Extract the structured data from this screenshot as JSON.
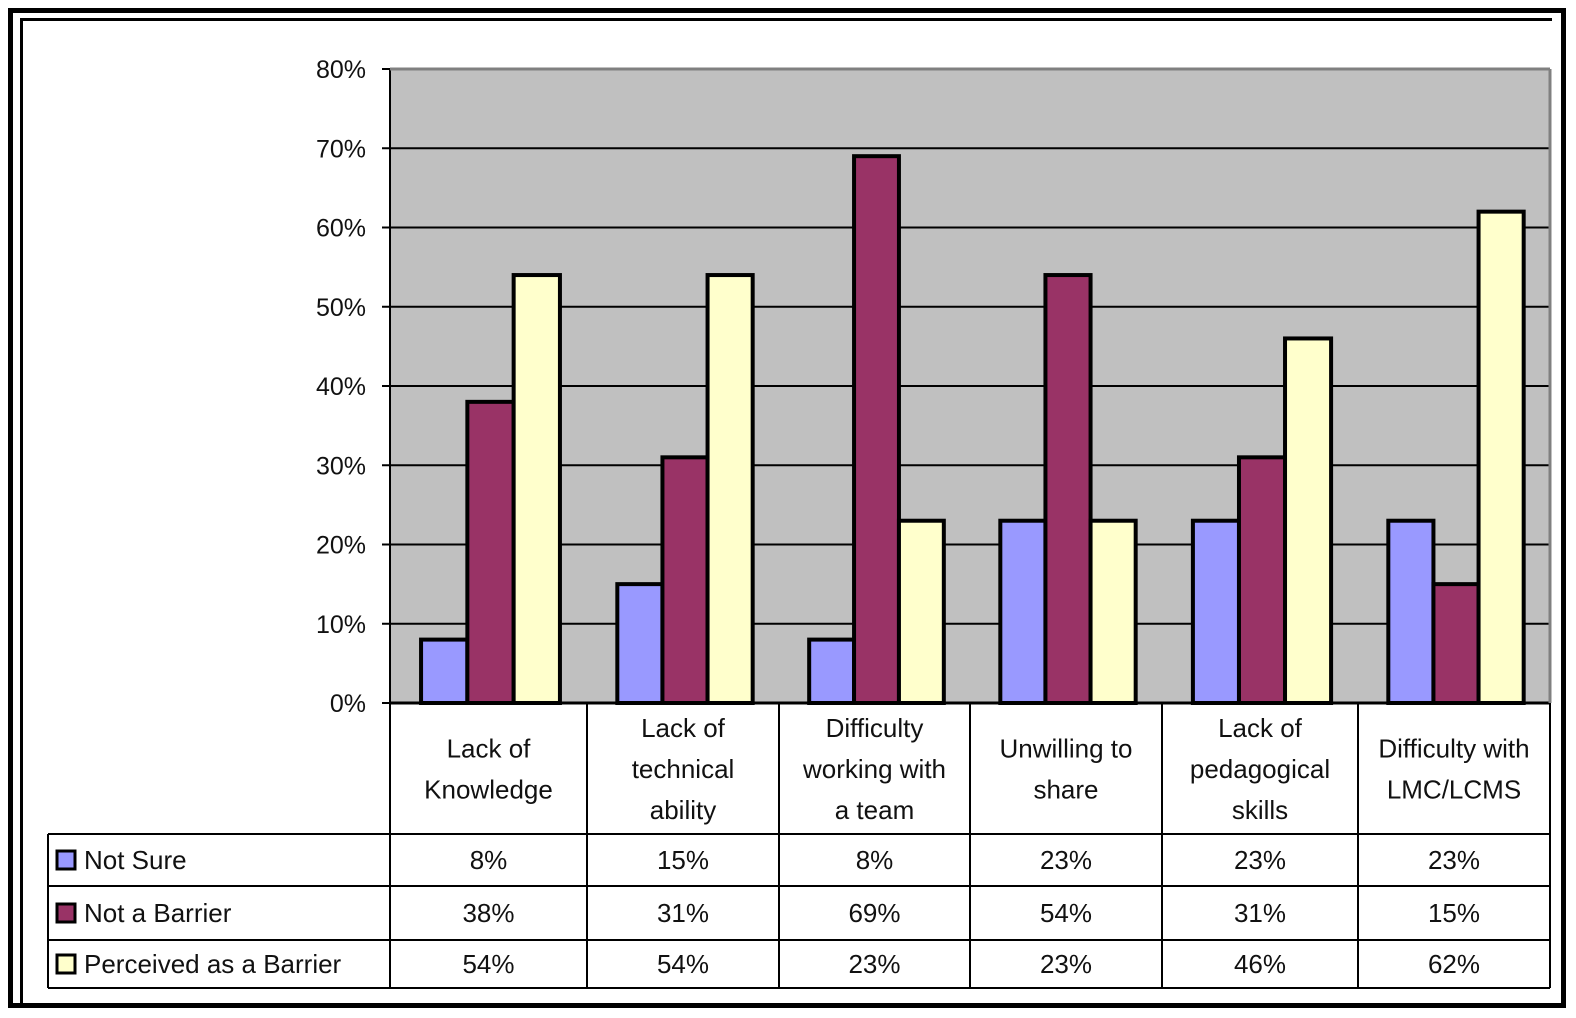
{
  "chart_data": {
    "type": "bar",
    "categories": [
      [
        "Lack of",
        "Knowledge"
      ],
      [
        "Lack of",
        "technical",
        "ability"
      ],
      [
        "Difficulty",
        "working with",
        "a team"
      ],
      [
        "Unwilling to",
        "share"
      ],
      [
        "Lack of",
        "pedagogical",
        "skills"
      ],
      [
        "Difficulty with",
        "LMC/LCMS"
      ]
    ],
    "series": [
      {
        "name": "Not Sure",
        "color": "#9999ff",
        "values": [
          8,
          15,
          8,
          23,
          23,
          23
        ],
        "labels": [
          "8%",
          "15%",
          "8%",
          "23%",
          "23%",
          "23%"
        ]
      },
      {
        "name": "Not a Barrier",
        "color": "#993366",
        "values": [
          38,
          31,
          69,
          54,
          31,
          15
        ],
        "labels": [
          "38%",
          "31%",
          "69%",
          "54%",
          "31%",
          "15%"
        ]
      },
      {
        "name": "Perceived as a Barrier",
        "color": "#ffffcc",
        "values": [
          54,
          54,
          23,
          23,
          46,
          62
        ],
        "labels": [
          "54%",
          "54%",
          "23%",
          "23%",
          "46%",
          "62%"
        ]
      }
    ],
    "yticks": [
      "0%",
      "10%",
      "20%",
      "30%",
      "40%",
      "50%",
      "60%",
      "70%",
      "80%"
    ],
    "ylim": [
      0,
      80
    ],
    "grid": true,
    "plot_background": "#c0c0c0",
    "legend": "data table below chart"
  }
}
